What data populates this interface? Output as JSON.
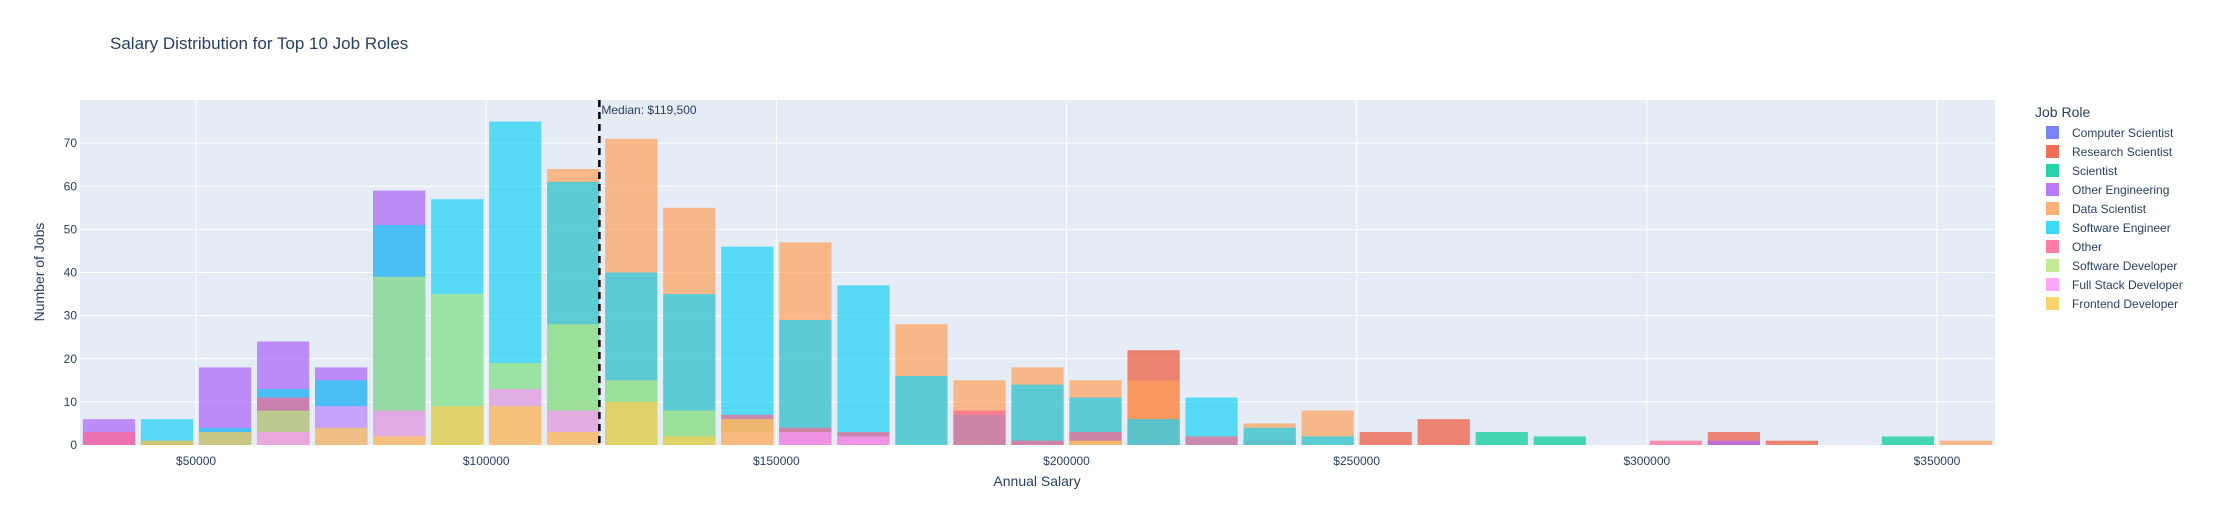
{
  "chart_data": {
    "type": "bar",
    "barmode": "overlay",
    "title": "Salary Distribution for Top 10 Job Roles",
    "xlabel": "Annual Salary",
    "ylabel": "Number of Jobs",
    "xlim": [
      30000,
      360000
    ],
    "ylim": [
      0,
      80
    ],
    "bin_width": 10000,
    "bin_start": 30000,
    "x_ticks": [
      {
        "value": 50000,
        "label": "$50000"
      },
      {
        "value": 100000,
        "label": "$100000"
      },
      {
        "value": 150000,
        "label": "$150000"
      },
      {
        "value": 200000,
        "label": "$200000"
      },
      {
        "value": 250000,
        "label": "$250000"
      },
      {
        "value": 300000,
        "label": "$300000"
      },
      {
        "value": 350000,
        "label": "$350000"
      }
    ],
    "y_ticks": [
      0,
      10,
      20,
      30,
      40,
      50,
      60,
      70
    ],
    "grid": true,
    "legend_title": "Job Role",
    "legend_position": "right",
    "median": {
      "value": 119500,
      "label": "Median: $119,500"
    },
    "series": [
      {
        "name": "Computer Scientist",
        "color": "#636efa",
        "values": [
          0,
          0,
          0,
          0,
          0,
          0,
          0,
          0,
          0,
          0,
          0,
          0,
          0,
          0,
          0,
          0,
          0,
          0,
          0,
          0,
          0,
          0,
          0,
          0,
          0,
          0,
          0,
          0,
          0,
          0,
          0,
          0,
          0
        ]
      },
      {
        "name": "Research Scientist",
        "color": "#EF553B",
        "values": [
          0,
          1,
          0,
          2,
          0,
          0,
          0,
          0,
          0,
          0,
          0,
          0,
          0,
          0,
          0,
          0,
          0,
          0,
          22,
          0,
          1,
          0,
          3,
          6,
          0,
          0,
          0,
          0,
          3,
          1,
          0,
          0,
          0
        ]
      },
      {
        "name": "Scientist",
        "color": "#00cc96",
        "values": [
          0,
          0,
          0,
          0,
          0,
          0,
          0,
          0,
          0,
          0,
          0,
          0,
          0,
          0,
          0,
          0,
          0,
          0,
          0,
          0,
          0,
          0,
          0,
          0,
          3,
          2,
          0,
          0,
          0,
          0,
          0,
          2,
          0
        ]
      },
      {
        "name": "Other Engineering",
        "color": "#ab63fa",
        "values": [
          6,
          0,
          18,
          24,
          18,
          59,
          0,
          0,
          0,
          0,
          0,
          0,
          0,
          0,
          0,
          0,
          0,
          0,
          0,
          0,
          0,
          0,
          0,
          0,
          0,
          0,
          0,
          0,
          1,
          0,
          0,
          0,
          0
        ]
      },
      {
        "name": "Data Scientist",
        "color": "#FFA15A",
        "values": [
          0,
          0,
          0,
          0,
          0,
          0,
          0,
          0,
          64,
          71,
          55,
          0,
          47,
          0,
          28,
          15,
          18,
          15,
          15,
          0,
          5,
          8,
          0,
          0,
          0,
          0,
          0,
          0,
          0,
          0,
          0,
          0,
          1
        ]
      },
      {
        "name": "Software Engineer",
        "color": "#19d3f3",
        "values": [
          0,
          6,
          4,
          13,
          15,
          51,
          57,
          75,
          61,
          40,
          35,
          46,
          29,
          37,
          16,
          7,
          14,
          11,
          6,
          11,
          4,
          2,
          0,
          0,
          0,
          0,
          0,
          0,
          0,
          0,
          0,
          0,
          0
        ]
      },
      {
        "name": "Other",
        "color": "#FF6692",
        "values": [
          3,
          0,
          0,
          11,
          0,
          0,
          0,
          0,
          0,
          0,
          0,
          7,
          4,
          3,
          0,
          8,
          1,
          3,
          0,
          2,
          0,
          0,
          0,
          0,
          0,
          0,
          0,
          1,
          0,
          0,
          0,
          0,
          0
        ]
      },
      {
        "name": "Software Developer",
        "color": "#B6E880",
        "values": [
          0,
          0,
          0,
          8,
          0,
          39,
          35,
          19,
          28,
          15,
          8,
          0,
          0,
          0,
          0,
          0,
          0,
          0,
          0,
          0,
          0,
          0,
          0,
          0,
          0,
          0,
          0,
          0,
          0,
          0,
          0,
          0,
          0
        ]
      },
      {
        "name": "Full Stack Developer",
        "color": "#FF97FF",
        "values": [
          0,
          0,
          0,
          3,
          9,
          8,
          0,
          13,
          8,
          0,
          0,
          3,
          3,
          2,
          0,
          0,
          0,
          0,
          0,
          0,
          0,
          0,
          0,
          0,
          0,
          0,
          0,
          0,
          0,
          0,
          0,
          0,
          0
        ]
      },
      {
        "name": "Frontend Developer",
        "color": "#FECB52",
        "values": [
          0,
          1,
          3,
          0,
          4,
          2,
          9,
          9,
          3,
          10,
          2,
          6,
          0,
          0,
          0,
          0,
          0,
          1,
          0,
          0,
          0,
          0,
          0,
          0,
          0,
          0,
          0,
          0,
          0,
          0,
          0,
          0,
          0
        ]
      }
    ]
  }
}
